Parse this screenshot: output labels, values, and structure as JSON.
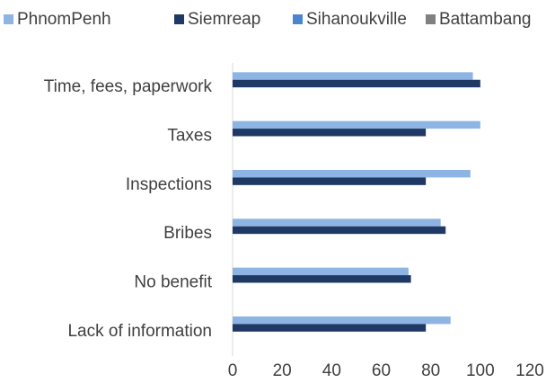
{
  "chart_data": {
    "type": "hbar",
    "categories": [
      "Time, fees, paperwork",
      "Taxes",
      "Inspections",
      "Bribes",
      "No benefit",
      "Lack of information"
    ],
    "series": [
      {
        "name": "PhnomPenh",
        "color": "#8eb4e3",
        "values": [
          97,
          100,
          96,
          84,
          71,
          88
        ]
      },
      {
        "name": "Siemreap",
        "color": "#1f3864",
        "values": [
          100,
          78,
          78,
          86,
          72,
          78
        ]
      },
      {
        "name": "Sihanoukville",
        "color": "#4a86d0",
        "values": [
          null,
          null,
          null,
          null,
          null,
          null
        ]
      },
      {
        "name": "Battambang",
        "color": "#808080",
        "values": [
          null,
          null,
          null,
          null,
          null,
          null
        ]
      }
    ],
    "xlim": [
      0,
      120
    ],
    "xticks": [
      0,
      20,
      40,
      60,
      80,
      100,
      120
    ],
    "legend": "top"
  }
}
